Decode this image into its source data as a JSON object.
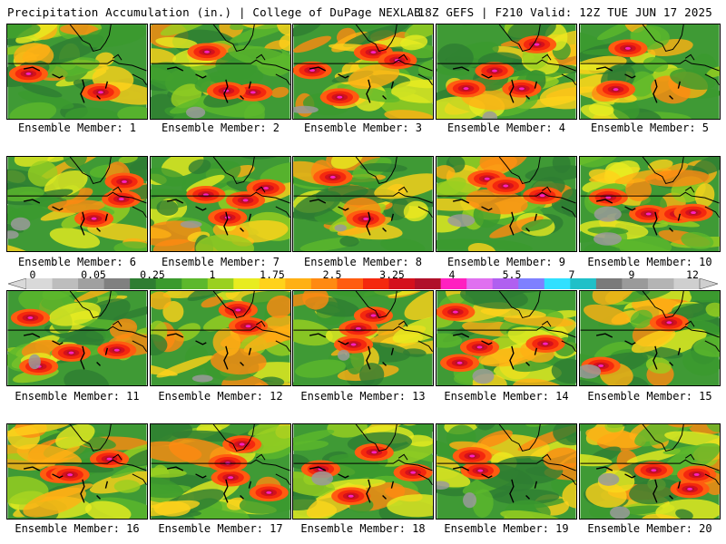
{
  "header": {
    "left_title": "Precipitation Accumulation (in.) | College of DuPage NEXLAB",
    "right_title": "18Z GEFS | F210 Valid: 12Z TUE JUN 17 2025"
  },
  "panels": [
    {
      "label": "Ensemble Member: 1"
    },
    {
      "label": "Ensemble Member: 2"
    },
    {
      "label": "Ensemble Member: 3"
    },
    {
      "label": "Ensemble Member: 4"
    },
    {
      "label": "Ensemble Member: 5"
    },
    {
      "label": "Ensemble Member: 6"
    },
    {
      "label": "Ensemble Member: 7"
    },
    {
      "label": "Ensemble Member: 8"
    },
    {
      "label": "Ensemble Member: 9"
    },
    {
      "label": "Ensemble Member: 10"
    },
    {
      "label": "Ensemble Member: 11"
    },
    {
      "label": "Ensemble Member: 12"
    },
    {
      "label": "Ensemble Member: 13"
    },
    {
      "label": "Ensemble Member: 14"
    },
    {
      "label": "Ensemble Member: 15"
    },
    {
      "label": "Ensemble Member: 16"
    },
    {
      "label": "Ensemble Member: 17"
    },
    {
      "label": "Ensemble Member: 18"
    },
    {
      "label": "Ensemble Member: 19"
    },
    {
      "label": "Ensemble Member: 20"
    }
  ],
  "color_scale": {
    "labels": [
      "0",
      "0.05",
      "0.25",
      "1",
      "1.75",
      "2.5",
      "3.25",
      "4",
      "5.5",
      "7",
      "9",
      "12"
    ],
    "colors": [
      "#d9d9d9",
      "#bdbdbd",
      "#a0a0a0",
      "#808080",
      "#2e7d32",
      "#3b9a2e",
      "#5cb82c",
      "#9ad020",
      "#e8ec20",
      "#ffd21a",
      "#ffb014",
      "#ff8a12",
      "#ff5c10",
      "#f4280e",
      "#d4101c",
      "#b0102a",
      "#ff20c0",
      "#e070f0",
      "#b060f0",
      "#7e80ff",
      "#30e0ff",
      "#20c0c8",
      "#7a7a7a",
      "#9a9a9a",
      "#b4b4b4",
      "#cfcfcf"
    ]
  }
}
